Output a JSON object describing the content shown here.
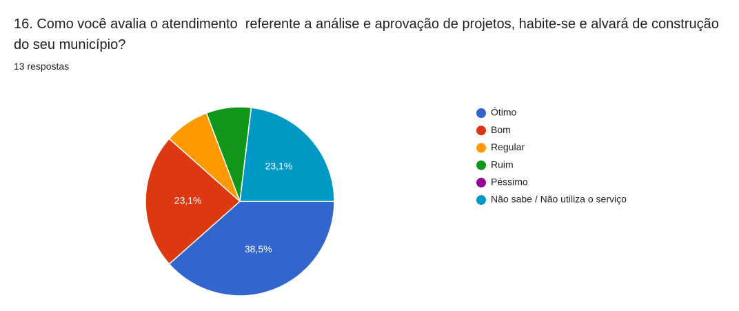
{
  "chart_data": {
    "type": "pie",
    "title": "16. Como você avalia o atendimento  referente a análise e aprovação de projetos, habite-se e alvará de construção do seu município?",
    "subtitle": "13 respostas",
    "categories": [
      "Ótimo",
      "Bom",
      "Regular",
      "Ruim",
      "Péssimo",
      "Não sabe / Não utiliza o serviço"
    ],
    "values": [
      38.5,
      23.1,
      7.7,
      7.7,
      0,
      23.1
    ],
    "value_labels": [
      "38,5%",
      "23,1%",
      null,
      null,
      null,
      "23,1%"
    ],
    "colors": [
      "#3366cc",
      "#dc3912",
      "#ff9900",
      "#109618",
      "#990099",
      "#0099c6"
    ],
    "legend": "right"
  }
}
